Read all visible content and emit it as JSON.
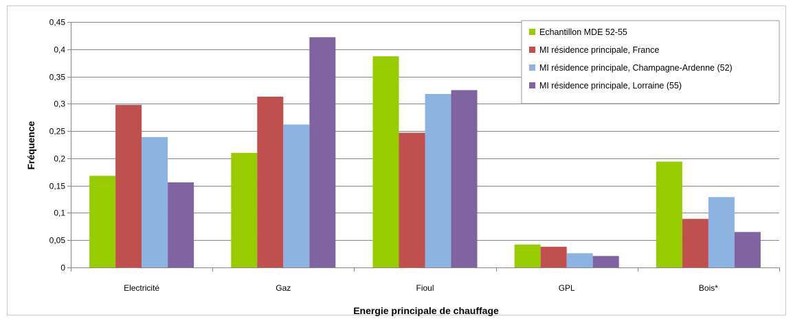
{
  "chart_data": {
    "type": "bar",
    "xlabel": "Energie principale de chauffage",
    "ylabel": "Fréquence",
    "ylim": [
      0,
      0.45
    ],
    "yticks": [
      "0",
      "0,05",
      "0,1",
      "0,15",
      "0,2",
      "0,25",
      "0,3",
      "0,35",
      "0,4",
      "0,45"
    ],
    "ytick_values": [
      0,
      0.05,
      0.1,
      0.15,
      0.2,
      0.25,
      0.3,
      0.35,
      0.4,
      0.45
    ],
    "categories": [
      "Electricité",
      "Gaz",
      "Fioul",
      "GPL",
      "Bois*"
    ],
    "grid": true,
    "legend_position": "top-right",
    "series": [
      {
        "name": "Echantillon MDE 52-55",
        "color": "#99cc00",
        "values": [
          0.168,
          0.21,
          0.387,
          0.042,
          0.194
        ]
      },
      {
        "name": "MI résidence principale, France",
        "color": "#c0504d",
        "values": [
          0.298,
          0.313,
          0.247,
          0.038,
          0.089
        ]
      },
      {
        "name": "MI résidence principale, Champagne-Ardenne  (52)",
        "color": "#8db3e2",
        "values": [
          0.239,
          0.262,
          0.318,
          0.026,
          0.129
        ]
      },
      {
        "name": "MI résidence principale, Lorraine (55)",
        "color": "#8064a2",
        "values": [
          0.156,
          0.422,
          0.325,
          0.021,
          0.065
        ]
      }
    ]
  }
}
